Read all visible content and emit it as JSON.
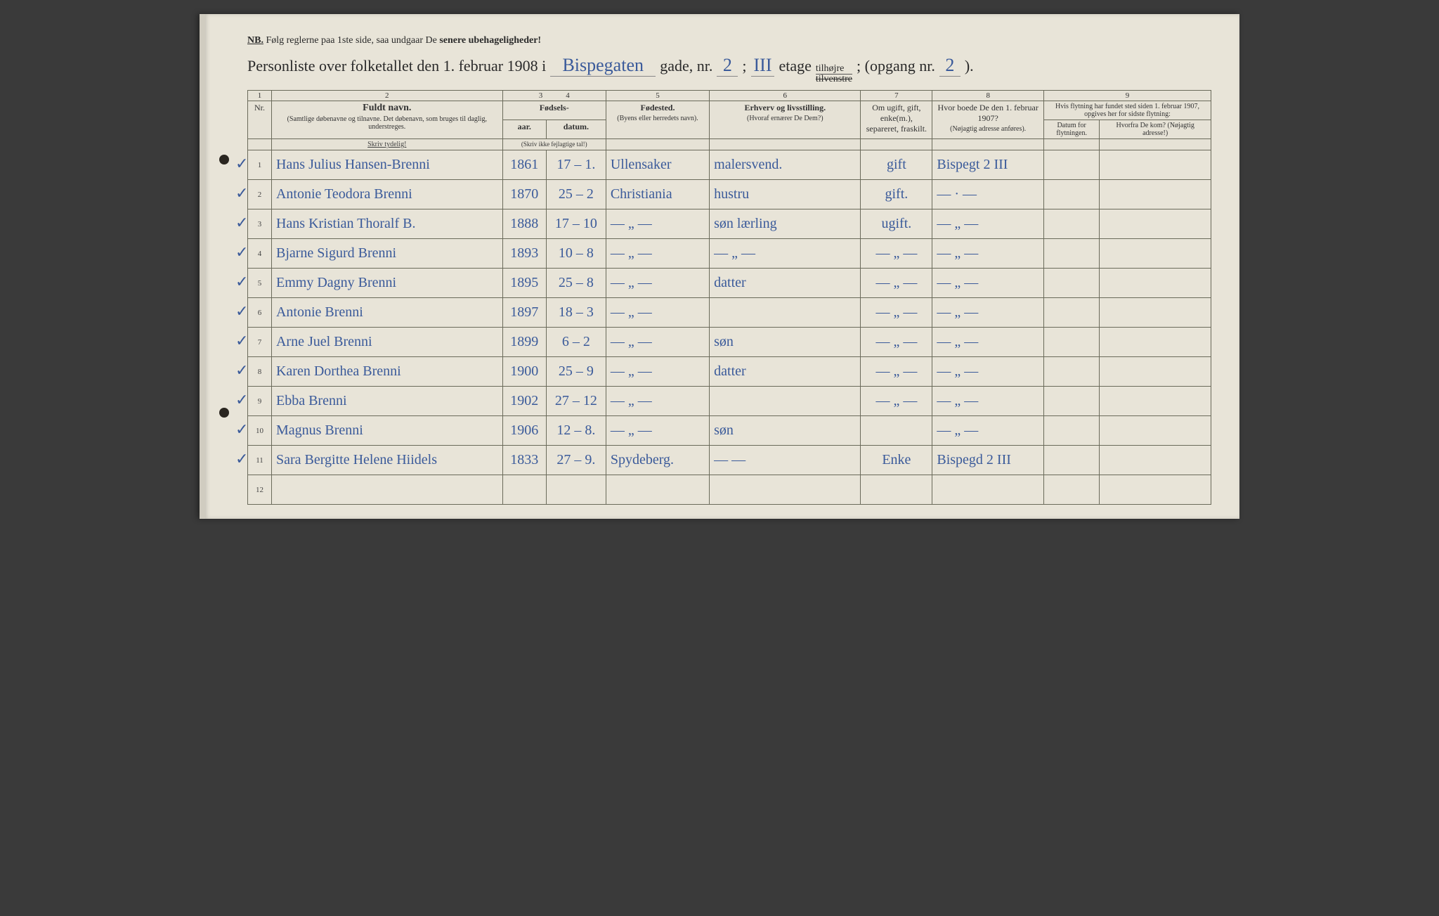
{
  "header": {
    "nb_label": "NB.",
    "nb_text": "Følg reglerne paa 1ste side, saa undgaar De",
    "nb_warn": "senere ubehageligheder!",
    "title_a": "Personliste over folketallet den 1. februar 1908 i",
    "street": "Bispegaten",
    "title_b": "gade, nr.",
    "house_nr": "2",
    "title_c": ";",
    "floor": "III",
    "title_d": "etage",
    "opt_top": "tilhøjre",
    "opt_bot": "tilvenstre",
    "title_e": "; (opgang nr.",
    "entrance": "2",
    "title_f": ")."
  },
  "columns": {
    "nums": [
      "1",
      "2",
      "3",
      "4",
      "5",
      "6",
      "7",
      "8",
      "9"
    ],
    "nr": "Nr.",
    "name_big": "Fuldt navn.",
    "name_small": "(Samtlige døbenavne og tilnavne. Det døbenavn, som bruges til daglig, understreges.",
    "skriv_tydelig": "Skriv tydelig!",
    "fodsels": "Fødsels-",
    "aar": "aar.",
    "datum": "datum.",
    "aar_small": "(Skriv ikke fejlagtige tal!)",
    "fodested": "Fødested.",
    "fodested_small": "(Byens eller herredets navn).",
    "erhverv": "Erhverv og livsstilling.",
    "erhverv_small": "(Hvoraf ernærer De Dem?)",
    "status": "Om ugift, gift, enke(m.), separeret, fraskilt.",
    "addr1907": "Hvor boede De den 1. februar 1907?",
    "addr1907_small": "(Nøjagtig adresse anføres).",
    "move_hdr": "Hvis flytning har fundet sted siden 1. februar 1907, opgives her for sidste flytning:",
    "move_date": "Datum for flytningen.",
    "move_from": "Hvorfra De kom? (Nøjagtig adresse!)"
  },
  "rows": [
    {
      "n": "1",
      "name": "Hans Julius Hansen-Brenni",
      "yr": "1861",
      "dt": "17 – 1.",
      "place": "Ullensaker",
      "occ": "malersvend.",
      "stat": "gift",
      "addr": "Bispegt 2 III"
    },
    {
      "n": "2",
      "name": "Antonie Teodora Brenni",
      "yr": "1870",
      "dt": "25 – 2",
      "place": "Christiania",
      "occ": "hustru",
      "stat": "gift.",
      "addr": "— · —"
    },
    {
      "n": "3",
      "name": "Hans Kristian Thoralf B.",
      "yr": "1888",
      "dt": "17 – 10",
      "place": "— „ —",
      "occ": "søn  lærling",
      "stat": "ugift.",
      "addr": "— „ —"
    },
    {
      "n": "4",
      "name": "Bjarne Sigurd Brenni",
      "yr": "1893",
      "dt": "10 – 8",
      "place": "— „ —",
      "occ": "— „ —",
      "stat": "— „ —",
      "addr": "— „ —"
    },
    {
      "n": "5",
      "name": "Emmy Dagny Brenni",
      "yr": "1895",
      "dt": "25 – 8",
      "place": "— „ —",
      "occ": "datter",
      "stat": "— „ —",
      "addr": "— „ —"
    },
    {
      "n": "6",
      "name": "Antonie Brenni",
      "yr": "1897",
      "dt": "18 – 3",
      "place": "— „ —",
      "occ": "",
      "stat": "— „ —",
      "addr": "— „ —"
    },
    {
      "n": "7",
      "name": "Arne Juel Brenni",
      "yr": "1899",
      "dt": "6 – 2",
      "place": "— „ —",
      "occ": "søn",
      "stat": "— „ —",
      "addr": "— „ —"
    },
    {
      "n": "8",
      "name": "Karen Dorthea Brenni",
      "yr": "1900",
      "dt": "25 – 9",
      "place": "— „ —",
      "occ": "datter",
      "stat": "— „ —",
      "addr": "— „ —"
    },
    {
      "n": "9",
      "name": "Ebba Brenni",
      "yr": "1902",
      "dt": "27 – 12",
      "place": "— „ —",
      "occ": "",
      "stat": "— „ —",
      "addr": "— „ —"
    },
    {
      "n": "10",
      "name": "Magnus Brenni",
      "yr": "1906",
      "dt": "12 – 8.",
      "place": "— „ —",
      "occ": "søn",
      "stat": "",
      "addr": "— „ —"
    },
    {
      "n": "11",
      "name": "Sara Bergitte Helene Hiidels",
      "yr": "1833",
      "dt": "27 – 9.",
      "place": "Spydeberg.",
      "occ": "—     —",
      "stat": "Enke",
      "addr": "Bispegd 2 III"
    },
    {
      "n": "12",
      "name": "",
      "yr": "",
      "dt": "",
      "place": "",
      "occ": "",
      "stat": "",
      "addr": ""
    }
  ]
}
